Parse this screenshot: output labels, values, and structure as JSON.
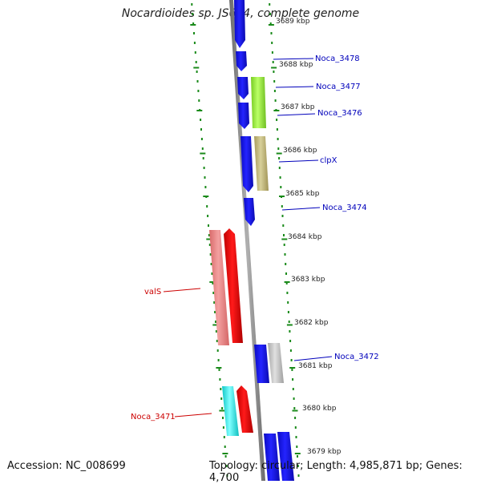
{
  "title": "Nocardioides sp. JS614, complete genome",
  "footer": {
    "accession": "Accession: NC_008699",
    "topology": "Topology: circular; Length: 4,985,871 bp; Genes: 4,700"
  },
  "scale": {
    "ticks": [
      "3688 kbp",
      "3687 kbp",
      "3686 kbp",
      "3685 kbp",
      "3684 kbp",
      "3683 kbp",
      "3682 kbp",
      "3681 kbp",
      "3680 kbp",
      "3679 kbp"
    ],
    "top_partial_tick": "3689 kbp"
  },
  "labels": {
    "right": [
      "Noca_3478",
      "Noca_3477",
      "Noca_3476",
      "clpX",
      "Noca_3474",
      "Noca_3472"
    ],
    "left": [
      "valS",
      "Noca_3471"
    ]
  },
  "colors": {
    "blue_gene": "#1a1ae6",
    "red_gene": "#ee0000",
    "pink_gene": "#ee8888",
    "green_gene": "#99ee44",
    "olive_gene": "#c8c088",
    "grey_gene": "#c0c0c0",
    "cyan_gene": "#22eeee",
    "tick_green": "#1a8a1a",
    "backbone": "#8a8a8a",
    "label_blue": "#0000bb",
    "label_red": "#cc0000"
  }
}
